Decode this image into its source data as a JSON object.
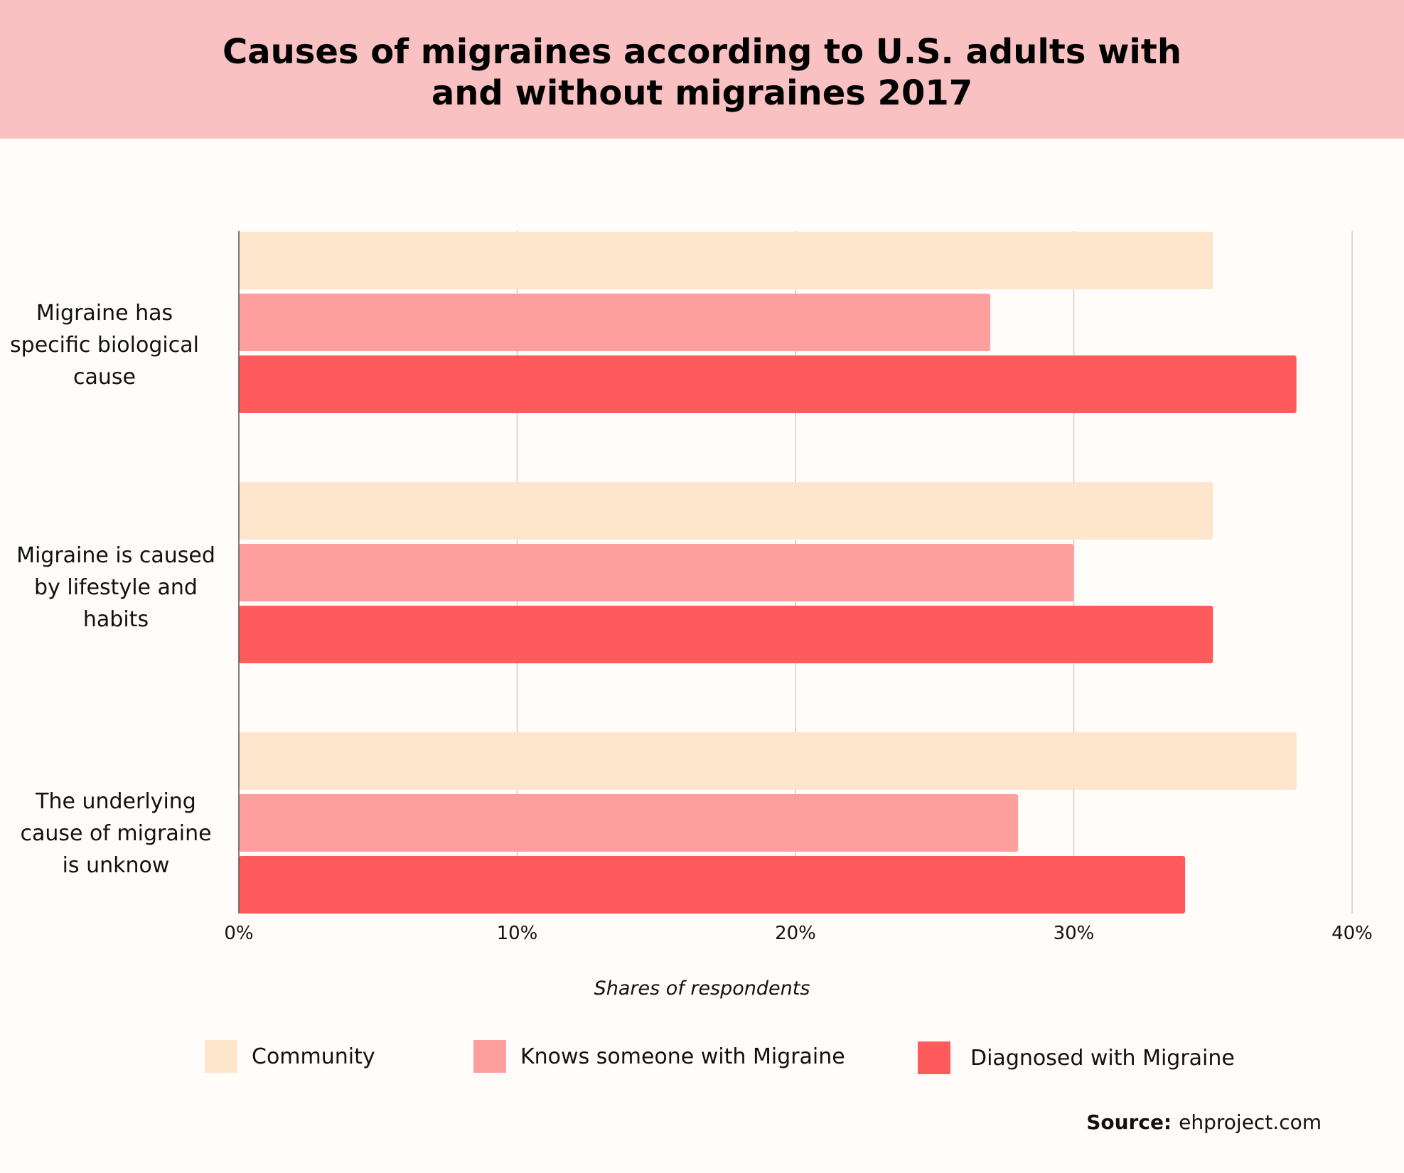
{
  "chart_data": {
    "type": "bar",
    "orientation": "horizontal",
    "title": "Causes of migraines according to U.S. adults with and without migraines 2017",
    "title_lines": [
      "Causes of migraines according to U.S. adults with",
      "and without migraines 2017"
    ],
    "categories": [
      [
        "Migraine has",
        "specific biological",
        "cause"
      ],
      [
        "Migraine is caused",
        "by lifestyle and",
        "habits"
      ],
      [
        "The underlying",
        "cause of migraine",
        "is unknow"
      ]
    ],
    "series": [
      {
        "name": "Community",
        "color": "#fee6cd",
        "values": [
          35,
          35,
          38
        ]
      },
      {
        "name": "Knows someone with Migraine",
        "color": "#fe9f9e",
        "values": [
          27,
          30,
          28
        ]
      },
      {
        "name": "Diagnosed with Migraine",
        "color": "#ff5a5c",
        "values": [
          38,
          35,
          34
        ]
      }
    ],
    "xlim": [
      0,
      40
    ],
    "ticks": [
      0,
      10,
      20,
      30,
      40
    ],
    "tick_labels": [
      "0%",
      "10%",
      "20%",
      "30%",
      "40%"
    ],
    "xlabel": "Shares of respondents",
    "ylabel": "",
    "grid": true,
    "legend_position": "bottom"
  },
  "source": {
    "label": "Source:",
    "text": "ehproject.com"
  }
}
